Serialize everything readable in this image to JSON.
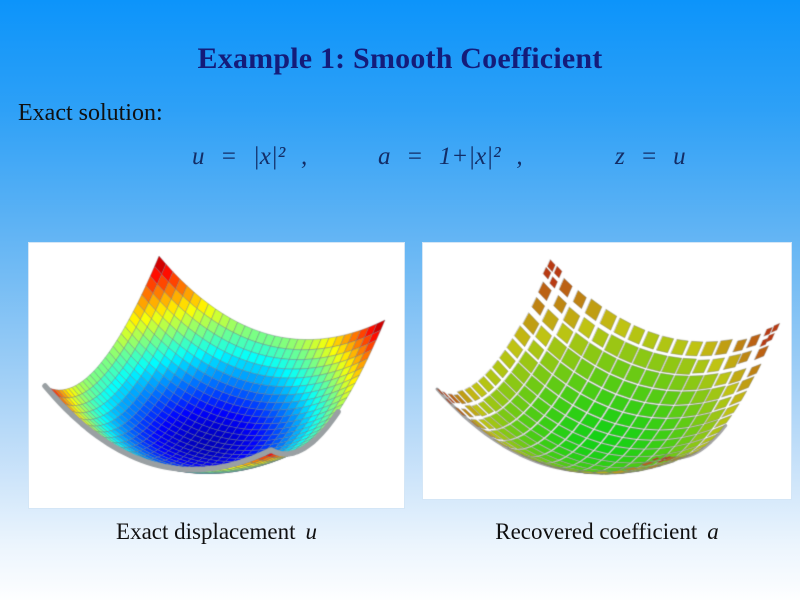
{
  "slide": {
    "title": "Example 1: Smooth Coefficient",
    "intro_label": "Exact solution:",
    "equations": [
      {
        "text": "u = |x|² ,"
      },
      {
        "text": "a = 1+|x|² ,"
      },
      {
        "text": "z = u"
      }
    ],
    "colors": {
      "background_top": "#0c94fa",
      "background_bottom": "#fdfeff",
      "title_color": "#141c7a",
      "formula_color": "#132d66",
      "text_color": "#101010",
      "mesh_line_gray": "#9aa0a3"
    }
  },
  "figures": [
    {
      "caption": "Exact displacement",
      "caption_var": "u"
    },
    {
      "caption": "Recovered coefficient",
      "caption_var": "a"
    }
  ],
  "chart_data": [
    {
      "type": "surface",
      "title": "Exact displacement u",
      "expression": "u = |x|^2",
      "domain_x": [
        -1,
        1
      ],
      "domain_y": [
        -1,
        1
      ],
      "z_range": [
        0,
        2
      ],
      "z_offset": 0,
      "grid_n": 30,
      "style": "smooth-mesh",
      "colormap": "jet",
      "background": "#ffffff",
      "camera": {
        "origin": [
          177,
          202
        ],
        "mx": [
          113,
          32
        ],
        "my": [
          57,
          -65
        ],
        "mz": [
          4.5,
          -46
        ]
      }
    },
    {
      "type": "surface",
      "title": "Recovered coefficient a",
      "expression": "a = 1 + |x|^2",
      "domain_x": [
        -1,
        1
      ],
      "domain_y": [
        -1,
        1
      ],
      "z_range": [
        1,
        3
      ],
      "z_offset": 1,
      "grid_n": 16,
      "style": "scattered-tiles",
      "colormap": "green-red",
      "background": "#ffffff",
      "camera": {
        "origin": [
          174,
          243.5
        ],
        "mx": [
          115,
          33
        ],
        "my": [
          57,
          -66
        ],
        "mz": [
          4,
          -43.5
        ]
      }
    }
  ]
}
